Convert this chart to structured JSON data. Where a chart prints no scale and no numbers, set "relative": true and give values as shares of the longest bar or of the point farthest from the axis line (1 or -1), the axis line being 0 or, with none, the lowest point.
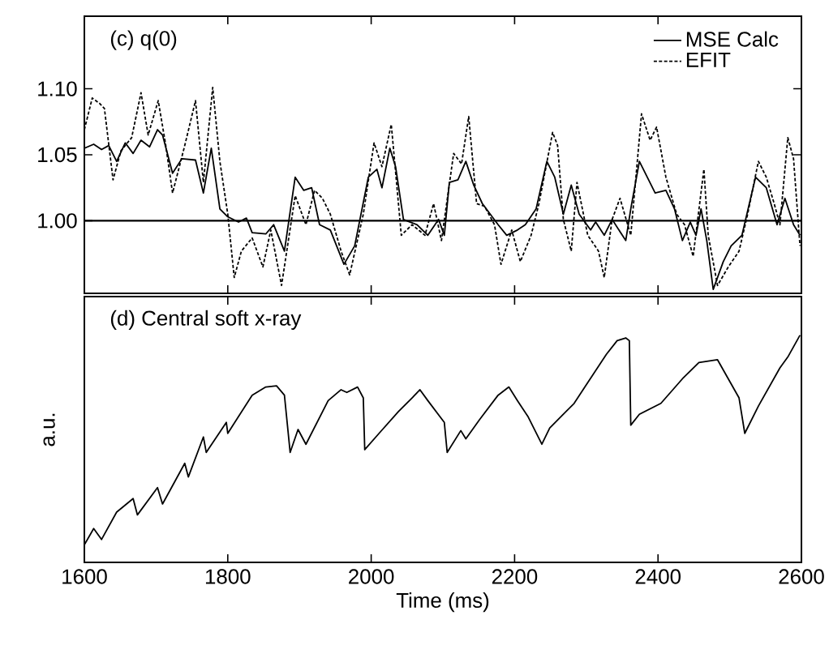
{
  "chart_data": [
    {
      "type": "line",
      "title": "(c) q(0)",
      "xlim": [
        1600,
        2600
      ],
      "xticks": [
        1600,
        1800,
        2000,
        2200,
        2400,
        2600
      ],
      "ylim": [
        0.945,
        1.155
      ],
      "yticks": [
        {
          "value": 1.0,
          "label": "1.00"
        },
        {
          "value": 1.05,
          "label": "1.05"
        },
        {
          "value": 1.1,
          "label": "1.10"
        }
      ],
      "tick_labels": "y",
      "legend": "top right",
      "ref_lines": [
        {
          "axis": "y",
          "value": 1.0,
          "color": "#000000"
        }
      ],
      "series": [
        {
          "name": "MSE Calc",
          "color": "#000000",
          "line_style": "solid",
          "x": [
            1600,
            1613,
            1624,
            1634,
            1645,
            1657,
            1668,
            1679,
            1691,
            1702,
            1709,
            1723,
            1736,
            1755,
            1766,
            1777,
            1789,
            1800,
            1815,
            1826,
            1834,
            1853,
            1864,
            1879,
            1894,
            1906,
            1917,
            1928,
            1943,
            1962,
            1977,
            1996,
            2008,
            2015,
            2026,
            2034,
            2045,
            2064,
            2079,
            2094,
            2102,
            2109,
            2121,
            2132,
            2143,
            2155,
            2166,
            2177,
            2189,
            2204,
            2215,
            2230,
            2245,
            2256,
            2268,
            2279,
            2290,
            2306,
            2313,
            2325,
            2336,
            2355,
            2362,
            2374,
            2385,
            2396,
            2411,
            2423,
            2434,
            2445,
            2453,
            2460,
            2468,
            2477,
            2491,
            2502,
            2517,
            2536,
            2551,
            2566,
            2577,
            2589,
            2598
          ],
          "values": [
            1.055,
            1.058,
            1.054,
            1.057,
            1.045,
            1.059,
            1.051,
            1.061,
            1.056,
            1.069,
            1.065,
            1.036,
            1.047,
            1.046,
            1.021,
            1.055,
            1.009,
            1.003,
            0.999,
            1.002,
            0.991,
            0.99,
            0.997,
            0.977,
            1.033,
            1.023,
            1.025,
            0.997,
            0.993,
            0.967,
            0.981,
            1.033,
            1.039,
            1.025,
            1.055,
            1.041,
            1.001,
            0.997,
            0.989,
            1.001,
            0.989,
            1.029,
            1.031,
            1.045,
            1.027,
            1.013,
            1.005,
            0.997,
            0.989,
            0.993,
            0.997,
            1.009,
            1.045,
            1.033,
            1.005,
            1.027,
            1.005,
            0.993,
            0.999,
            0.989,
            1.001,
            0.985,
            1.009,
            1.045,
            1.033,
            1.021,
            1.023,
            1.009,
            0.985,
            0.999,
            0.989,
            1.009,
            0.985,
            0.948,
            0.969,
            0.981,
            0.989,
            1.033,
            1.025,
            0.997,
            1.017,
            0.997,
            0.989
          ]
        },
        {
          "name": "EFIT",
          "color": "#000000",
          "line_style": "dotted",
          "x": [
            1600,
            1611,
            1621,
            1628,
            1640,
            1651,
            1666,
            1679,
            1689,
            1703,
            1713,
            1723,
            1740,
            1755,
            1766,
            1779,
            1789,
            1800,
            1809,
            1819,
            1834,
            1849,
            1860,
            1875,
            1894,
            1909,
            1921,
            1932,
            1943,
            1958,
            1970,
            1989,
            2004,
            2015,
            2028,
            2042,
            2057,
            2075,
            2087,
            2098,
            2115,
            2126,
            2136,
            2147,
            2158,
            2172,
            2181,
            2196,
            2208,
            2223,
            2234,
            2253,
            2260,
            2268,
            2279,
            2287,
            2302,
            2317,
            2325,
            2336,
            2347,
            2362,
            2377,
            2389,
            2398,
            2411,
            2426,
            2437,
            2449,
            2464,
            2470,
            2483,
            2498,
            2513,
            2525,
            2540,
            2551,
            2562,
            2570,
            2581,
            2589,
            2598
          ],
          "values": [
            1.069,
            1.093,
            1.089,
            1.085,
            1.031,
            1.053,
            1.063,
            1.097,
            1.065,
            1.091,
            1.059,
            1.021,
            1.057,
            1.091,
            1.029,
            1.101,
            1.045,
            1.005,
            0.957,
            0.977,
            0.987,
            0.965,
            0.993,
            0.951,
            1.019,
            0.997,
            1.023,
            1.017,
            1.005,
            0.977,
            0.959,
            1.005,
            1.059,
            1.041,
            1.073,
            0.989,
            0.997,
            0.989,
            1.013,
            0.985,
            1.051,
            1.043,
            1.079,
            1.013,
            1.011,
            0.997,
            0.967,
            0.993,
            0.969,
            0.989,
            1.013,
            1.067,
            1.057,
            1.001,
            0.977,
            1.029,
            0.989,
            0.977,
            0.957,
            1.001,
            1.017,
            0.989,
            1.081,
            1.061,
            1.071,
            1.033,
            1.005,
            0.997,
            0.973,
            1.039,
            0.989,
            0.951,
            0.965,
            0.977,
            1.005,
            1.045,
            1.033,
            1.013,
            0.997,
            1.063,
            1.047,
            0.981
          ]
        }
      ]
    },
    {
      "type": "line",
      "title": "(d) Central soft x-ray",
      "xlabel": "Time (ms)",
      "ylabel": "a.u.",
      "xlim": [
        1600,
        2600
      ],
      "xticks": [
        1600,
        1800,
        2000,
        2200,
        2400,
        2600
      ],
      "tick_labels": "x",
      "relative": true,
      "series": [
        {
          "color": "#000000",
          "x": [
            1600,
            1613,
            1624,
            1645,
            1668,
            1674,
            1702,
            1709,
            1740,
            1745,
            1766,
            1770,
            1798,
            1800,
            1834,
            1853,
            1868,
            1879,
            1887,
            1898,
            1909,
            1940,
            1958,
            1966,
            1981,
            1989,
            1991,
            2011,
            2038,
            2057,
            2068,
            2079,
            2102,
            2106,
            2125,
            2132,
            2151,
            2177,
            2192,
            2204,
            2219,
            2238,
            2249,
            2283,
            2298,
            2328,
            2343,
            2355,
            2360,
            2362,
            2374,
            2404,
            2434,
            2457,
            2483,
            2498,
            2513,
            2521,
            2540,
            2570,
            2581,
            2598
          ],
          "values": [
            0.077,
            0.149,
            0.101,
            0.221,
            0.281,
            0.209,
            0.329,
            0.257,
            0.436,
            0.376,
            0.552,
            0.484,
            0.616,
            0.568,
            0.736,
            0.772,
            0.777,
            0.736,
            0.484,
            0.585,
            0.52,
            0.712,
            0.76,
            0.748,
            0.772,
            0.724,
            0.496,
            0.568,
            0.664,
            0.724,
            0.76,
            0.712,
            0.616,
            0.484,
            0.58,
            0.544,
            0.628,
            0.736,
            0.772,
            0.712,
            0.64,
            0.52,
            0.592,
            0.7,
            0.772,
            0.916,
            0.976,
            0.988,
            0.976,
            0.604,
            0.652,
            0.7,
            0.808,
            0.88,
            0.892,
            0.808,
            0.724,
            0.568,
            0.688,
            0.856,
            0.904,
            1.0
          ]
        }
      ]
    }
  ]
}
